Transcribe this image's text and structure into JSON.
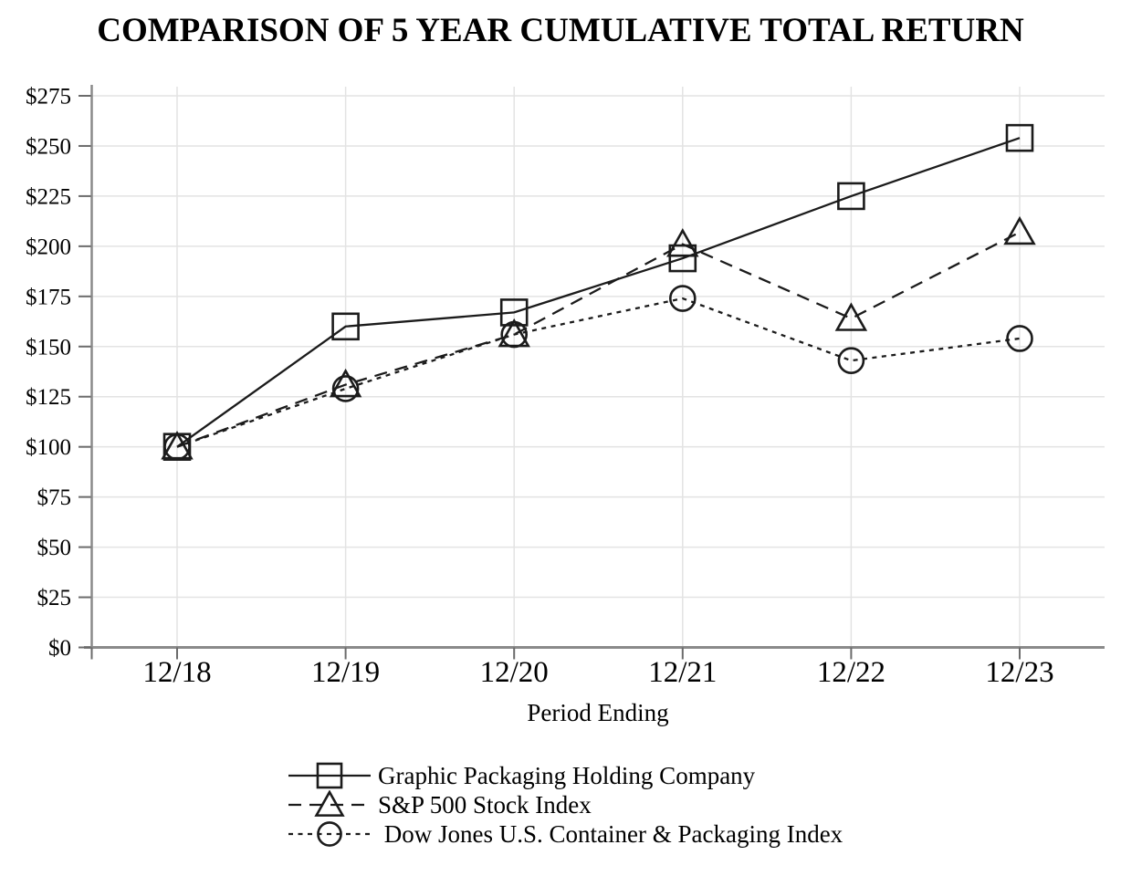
{
  "chart_data": {
    "type": "line",
    "title": "COMPARISON OF 5 YEAR CUMULATIVE TOTAL RETURN",
    "xlabel": "Period Ending",
    "categories": [
      "12/18",
      "12/19",
      "12/20",
      "12/21",
      "12/22",
      "12/23"
    ],
    "y_tick_labels": [
      "$0",
      "$25",
      "$50",
      "$75",
      "$100",
      "$125",
      "$150",
      "$175",
      "$200",
      "$225",
      "$250",
      "$275"
    ],
    "ylim": [
      0,
      275
    ],
    "y_tick_step": 25,
    "grid": true,
    "legend_position": "bottom-left",
    "series": [
      {
        "name": "Graphic Packaging Holding Company",
        "marker": "square",
        "line_style": "solid",
        "values": [
          100,
          160,
          167,
          194,
          225,
          254
        ]
      },
      {
        "name": "S&P 500 Stock Index",
        "marker": "triangle",
        "line_style": "long-dash",
        "values": [
          100,
          131,
          156,
          201,
          164,
          207
        ]
      },
      {
        "name": " Dow Jones U.S. Container & Packaging Index",
        "marker": "circle",
        "line_style": "short-dash",
        "values": [
          100,
          129,
          156,
          174,
          143,
          154
        ]
      }
    ],
    "colors": {
      "series": "#1b1b1b",
      "grid": "#e3e3e3",
      "axis": "#8a8a8a",
      "tick": "#6b6b6b",
      "text": "#000000",
      "background": "#ffffff"
    }
  }
}
